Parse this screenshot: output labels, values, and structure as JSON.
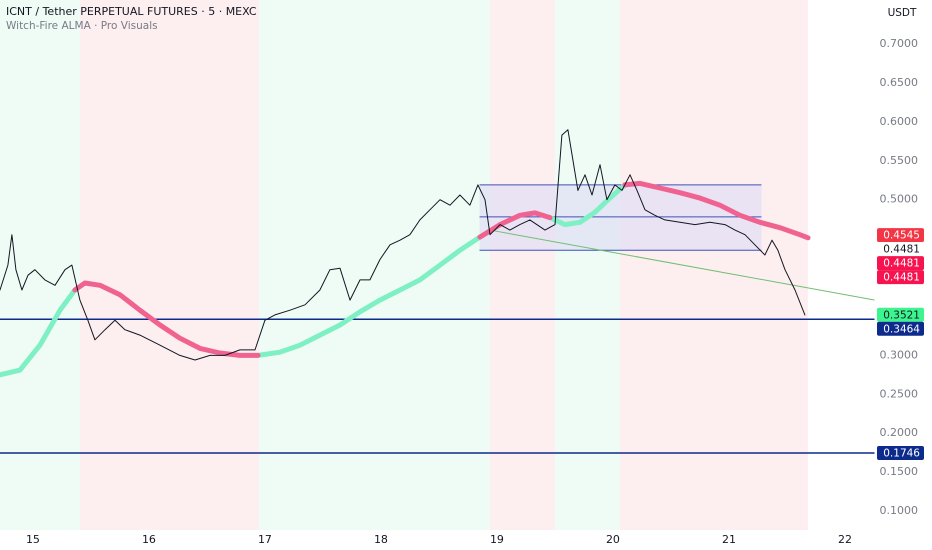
{
  "chart_data": {
    "type": "line",
    "title": "ICNT / Tether PERPETUAL FUTURES · 5 · MEXC",
    "subtitle": "Witch-Fire ALMA · Pro Visuals",
    "y_axis_label": "USDT",
    "xlim": [
      14.716,
      22.259
    ],
    "ylim": [
      0.0756,
      0.7566
    ],
    "xticks": [
      15,
      16,
      17,
      18,
      19,
      20,
      21,
      22
    ],
    "yticks": [
      {
        "value": 0.1,
        "label": "0.1000"
      },
      {
        "value": 0.15,
        "label": "0.1500"
      },
      {
        "value": 0.2,
        "label": "0.2000"
      },
      {
        "value": 0.25,
        "label": "0.2500"
      },
      {
        "value": 0.3,
        "label": "0.3000"
      },
      {
        "value": 0.35,
        "label": "0.3500"
      },
      {
        "value": 0.4,
        "label": "0.4000"
      },
      {
        "value": 0.45,
        "label": "0.4500"
      },
      {
        "value": 0.5,
        "label": "0.5000"
      },
      {
        "value": 0.55,
        "label": "0.5500"
      },
      {
        "value": 0.6,
        "label": "0.6000"
      },
      {
        "value": 0.65,
        "label": "0.6500"
      },
      {
        "value": 0.7,
        "label": "0.7000"
      }
    ],
    "grid": false,
    "zones": [
      {
        "x": [
          14.716,
          15.405
        ],
        "color": "#effbf5"
      },
      {
        "x": [
          15.405,
          16.95
        ],
        "color": "#fdeef0"
      },
      {
        "x": [
          16.95,
          18.94
        ],
        "color": "#effbf5"
      },
      {
        "x": [
          18.94,
          19.5
        ],
        "color": "#fdeef0"
      },
      {
        "x": [
          19.5,
          20.06
        ],
        "color": "#effbf5"
      },
      {
        "x": [
          20.06,
          21.68
        ],
        "color": "#fdeef0"
      }
    ],
    "box": {
      "x": [
        18.85,
        21.28
      ],
      "top": 0.519,
      "mid": 0.478,
      "bottom": 0.435,
      "color": "#3f51b5",
      "fill": "#dcdcf5"
    },
    "trend_line": {
      "x": [
        18.94,
        22.259
      ],
      "values": [
        0.461,
        0.371
      ],
      "color": "#6fbf73"
    },
    "hlines": [
      {
        "value": 0.3464,
        "color": "#0d2b8c"
      },
      {
        "value": 0.1746,
        "color": "#0d2b8c"
      }
    ],
    "series": [
      {
        "color": "#7ef0c4",
        "width": 5,
        "x": [
          14.716,
          14.888,
          15.06,
          15.233,
          15.362,
          15.448,
          15.578,
          15.75,
          15.922,
          16.095,
          16.267,
          16.44,
          16.612,
          16.784,
          16.94,
          17.129,
          17.302,
          17.474,
          17.647,
          17.819,
          17.991,
          18.164,
          18.336,
          18.509,
          18.681,
          18.853,
          19.026,
          19.198,
          19.328,
          19.457,
          19.586,
          19.716,
          19.845,
          19.974,
          20.103,
          20.233,
          20.405,
          20.578,
          20.75,
          20.922,
          21.095,
          21.267,
          21.44,
          21.612,
          21.681
        ],
        "values": [
          0.275,
          0.281,
          0.313,
          0.358,
          0.384,
          null,
          null,
          null,
          null,
          null,
          null,
          null,
          null,
          null,
          0.3,
          0.304,
          0.313,
          0.326,
          0.339,
          0.356,
          0.371,
          0.384,
          0.397,
          0.416,
          0.435,
          0.452,
          null,
          null,
          null,
          0.477,
          0.468,
          0.471,
          0.484,
          0.502,
          0.519,
          null,
          null,
          null,
          null,
          null,
          null,
          null,
          null,
          null,
          null
        ]
      },
      {
        "color": "#f0628f",
        "width": 5,
        "x": [
          14.716,
          14.888,
          15.06,
          15.233,
          15.362,
          15.448,
          15.578,
          15.75,
          15.922,
          16.095,
          16.267,
          16.44,
          16.612,
          16.784,
          16.94,
          17.129,
          17.302,
          17.474,
          17.647,
          17.819,
          17.991,
          18.164,
          18.336,
          18.509,
          18.681,
          18.853,
          19.026,
          19.198,
          19.328,
          19.457,
          19.586,
          19.716,
          19.845,
          19.974,
          20.103,
          20.233,
          20.405,
          20.578,
          20.75,
          20.922,
          21.095,
          21.267,
          21.44,
          21.612,
          21.681
        ],
        "values": [
          null,
          null,
          null,
          null,
          0.384,
          0.393,
          0.39,
          0.378,
          0.358,
          0.339,
          0.322,
          0.309,
          0.303,
          0.3,
          0.3,
          null,
          null,
          null,
          null,
          null,
          null,
          null,
          null,
          null,
          null,
          0.452,
          0.468,
          0.48,
          0.483,
          0.477,
          null,
          null,
          null,
          null,
          0.519,
          0.521,
          0.515,
          0.509,
          0.502,
          0.493,
          0.48,
          0.471,
          0.464,
          0.455,
          0.451
        ]
      },
      {
        "color": "#131722",
        "width": 1,
        "x": [
          14.716,
          14.784,
          14.819,
          14.853,
          14.905,
          14.957,
          15.017,
          15.103,
          15.19,
          15.276,
          15.336,
          15.405,
          15.474,
          15.534,
          15.621,
          15.707,
          15.793,
          15.922,
          16.095,
          16.267,
          16.397,
          16.526,
          16.655,
          16.784,
          16.914,
          17.0,
          17.086,
          17.216,
          17.345,
          17.474,
          17.56,
          17.647,
          17.733,
          17.819,
          17.905,
          17.991,
          18.078,
          18.164,
          18.25,
          18.336,
          18.422,
          18.509,
          18.595,
          18.681,
          18.767,
          18.836,
          18.897,
          18.94,
          19.026,
          19.112,
          19.198,
          19.284,
          19.414,
          19.5,
          19.56,
          19.612,
          19.655,
          19.698,
          19.759,
          19.819,
          19.888,
          19.948,
          20.017,
          20.078,
          20.147,
          20.207,
          20.276,
          20.362,
          20.448,
          20.578,
          20.707,
          20.836,
          20.966,
          21.052,
          21.138,
          21.224,
          21.31,
          21.371,
          21.422,
          21.483,
          21.569,
          21.655
        ],
        "values": [
          0.384,
          0.416,
          0.455,
          0.41,
          0.384,
          0.403,
          0.41,
          0.397,
          0.39,
          0.41,
          0.416,
          0.371,
          0.345,
          0.32,
          0.333,
          0.345,
          0.333,
          0.326,
          0.313,
          0.3,
          0.294,
          0.3,
          0.3,
          0.307,
          0.307,
          0.345,
          0.352,
          0.358,
          0.365,
          0.384,
          0.41,
          0.412,
          0.371,
          0.397,
          0.397,
          0.423,
          0.442,
          0.448,
          0.455,
          0.474,
          0.487,
          0.5,
          0.493,
          0.506,
          0.493,
          0.519,
          0.5,
          0.455,
          0.468,
          0.461,
          0.468,
          0.474,
          0.461,
          0.468,
          0.583,
          0.59,
          0.551,
          0.512,
          0.532,
          0.506,
          0.545,
          0.5,
          0.519,
          0.512,
          0.532,
          0.512,
          0.487,
          0.48,
          0.474,
          0.471,
          0.468,
          0.471,
          0.468,
          0.461,
          0.455,
          0.442,
          0.429,
          0.448,
          0.435,
          0.41,
          0.384,
          0.352
        ]
      }
    ],
    "price_labels": [
      {
        "value": 0.4545,
        "color": "#f23645",
        "text_color": "#ffffff"
      },
      {
        "value": 0.4481,
        "color": "#ffffff",
        "text_color": "#131722"
      },
      {
        "value": 0.4481,
        "color": "#f7134f",
        "text_color": "#ffffff"
      },
      {
        "value": 0.4481,
        "color": "#f7134f",
        "text_color": "#ffffff"
      },
      {
        "value": 0.3521,
        "color": "#3df58f",
        "text_color": "#131722"
      },
      {
        "value": 0.3464,
        "color": "#0d2b8c",
        "text_color": "#ffffff"
      },
      {
        "value": 0.1746,
        "color": "#0d2b8c",
        "text_color": "#ffffff"
      }
    ]
  }
}
